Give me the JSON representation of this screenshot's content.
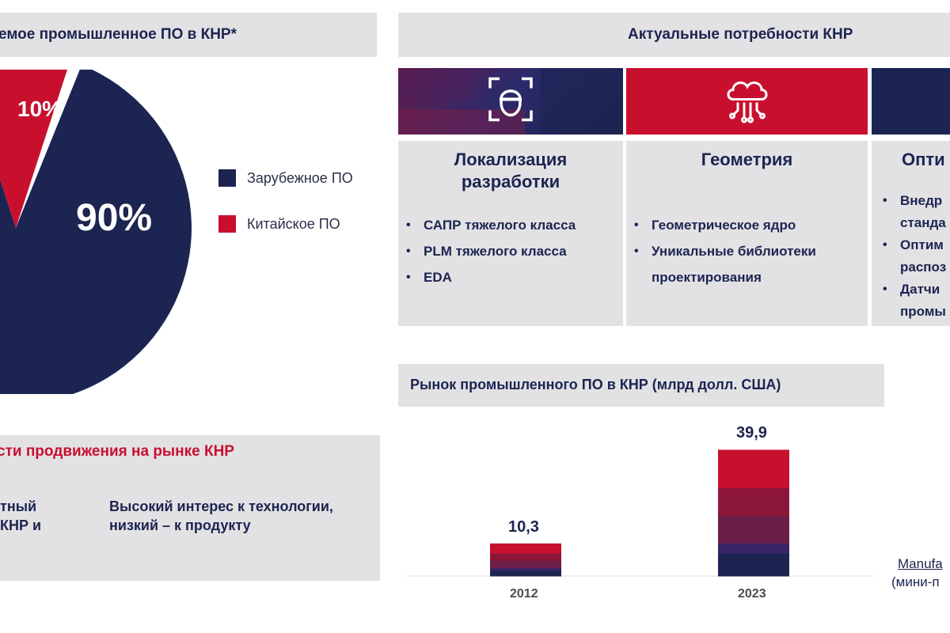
{
  "left": {
    "header": "емое промышленное ПО в КНР*",
    "pie": {
      "label_small": "10%",
      "label_big": "90%"
    },
    "legend": {
      "foreign": "Зарубежное ПО",
      "chinese": "Китайское ПО"
    },
    "promo": {
      "title": "сти продвижения на рынке КНР",
      "left_line1": "тный",
      "left_line2": "КНР и",
      "right_line1": "Высокий интерес к технологии,",
      "right_line2": "низкий – к продукту"
    }
  },
  "right": {
    "header": "Актуальные потребности КНР",
    "cards": [
      {
        "icon": "face-scan-icon",
        "title_line1": "Локализация",
        "title_line2": "разработки",
        "bullets": [
          "САПР тяжелого класса",
          "PLM тяжелого класса",
          "EDA"
        ]
      },
      {
        "icon": "cloud-circuit-icon",
        "title_line1": "Геометрия",
        "bullets": [
          "Геометрическое ядро",
          "Уникальные библиотеки",
          "проектирования"
        ]
      },
      {
        "title_line1": "Опти",
        "bullets": [
          "Внедр",
          "станда",
          "Оптим",
          "распоз",
          "Датчи",
          "промы"
        ]
      }
    ],
    "market": {
      "header": "Рынок промышленного ПО в КНР (млрд долл. США)",
      "cut_label_1": "Manufa",
      "cut_label_2": "(мини-п"
    }
  },
  "colors": {
    "navy": "#1c2451",
    "crimson": "#c8102e",
    "panel_gray": "#e2e2e4"
  },
  "chart_data": [
    {
      "type": "pie",
      "labels": [
        "Зарубежное ПО",
        "Китайское ПО"
      ],
      "values": [
        90,
        10
      ],
      "colors": [
        "#1c2451",
        "#c8102e"
      ],
      "legend": "right"
    },
    {
      "type": "bar",
      "categories": [
        "2012",
        "2023"
      ],
      "values": [
        10.3,
        39.9
      ],
      "ylim": [
        0,
        40
      ],
      "value_labels": [
        "10,3",
        "39,9"
      ]
    }
  ]
}
